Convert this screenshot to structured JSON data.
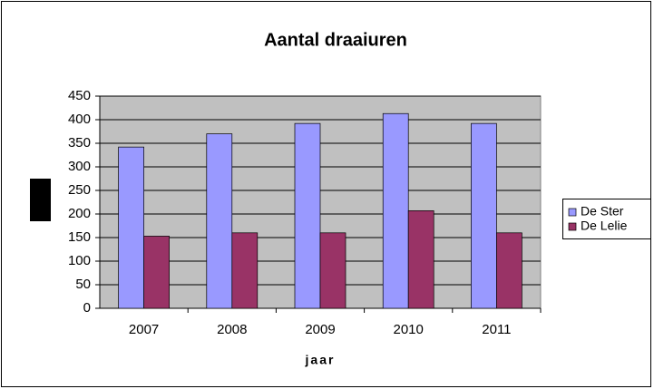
{
  "chart_data": {
    "type": "bar",
    "title": "Aantal draaiuren",
    "x_label": "jaar",
    "categories": [
      "2007",
      "2008",
      "2009",
      "2010",
      "2011"
    ],
    "series": [
      {
        "name": "De Ster",
        "color": "#9999ff",
        "values": [
          342,
          370,
          392,
          413,
          392
        ]
      },
      {
        "name": "De Lelie",
        "color": "#993366",
        "values": [
          153,
          160,
          160,
          207,
          160
        ]
      }
    ],
    "ylim": [
      0,
      450
    ],
    "yticks": [
      0,
      50,
      100,
      150,
      200,
      250,
      300,
      350,
      400,
      450
    ],
    "grid": true,
    "legend": "right"
  }
}
